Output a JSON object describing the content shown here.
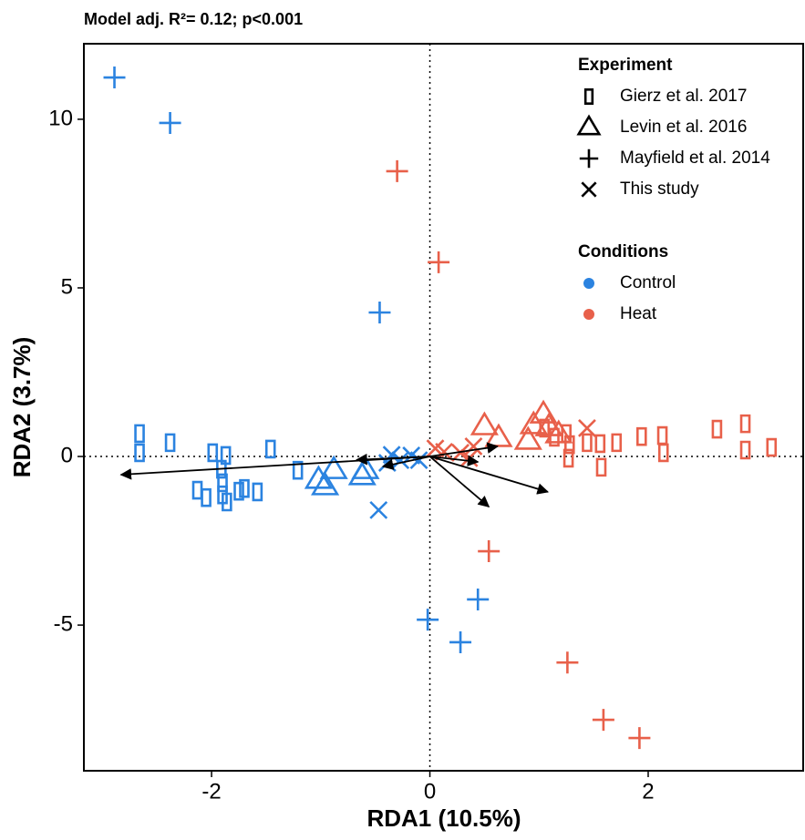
{
  "chart_data": {
    "type": "scatter",
    "title": "Model adj. R²= 0.12; p<0.001",
    "x_label": "RDA1 (10.5%)",
    "y_label": "RDA2 (3.7%)",
    "xlim": [
      -3.17,
      3.42
    ],
    "ylim": [
      -9.32,
      12.24
    ],
    "xticks": [
      -2,
      0,
      2
    ],
    "yticks": [
      -5,
      0,
      5,
      10
    ],
    "zero_lines": true,
    "legends": [
      {
        "title": "Experiment",
        "items": [
          {
            "label": "Gierz et al. 2017",
            "shape": "rect"
          },
          {
            "label": "Levin et al. 2016",
            "shape": "triangle"
          },
          {
            "label": "Mayfield et al. 2014",
            "shape": "plus"
          },
          {
            "label": "This study",
            "shape": "cross"
          }
        ]
      },
      {
        "title": "Conditions",
        "items": [
          {
            "label": "Control",
            "color": "#2b83e0"
          },
          {
            "label": "Heat",
            "color": "#e8604a"
          }
        ]
      }
    ],
    "series": [
      {
        "shape": "rect",
        "color": "#2b83e0",
        "x": [
          -2.66,
          -2.66,
          -2.38,
          -1.99,
          -2.13,
          -2.05,
          -1.91,
          -1.9,
          -1.9,
          -1.86,
          -1.87,
          -1.75,
          -1.7,
          -1.58,
          -1.46,
          -1.21
        ],
        "y": [
          0.68,
          0.11,
          0.41,
          0.11,
          -1.0,
          -1.22,
          -0.38,
          -0.78,
          -1.14,
          -1.35,
          0.03,
          -1.03,
          -0.95,
          -1.05,
          0.22,
          -0.41
        ]
      },
      {
        "shape": "triangle",
        "color": "#2b83e0",
        "x": [
          -1.02,
          -0.96,
          -0.88,
          -0.62,
          -0.59
        ],
        "y": [
          -0.7,
          -0.89,
          -0.41,
          -0.59,
          -0.41
        ]
      },
      {
        "shape": "cross",
        "color": "#2b83e0",
        "x": [
          -0.47,
          -0.35,
          -0.27,
          -0.17,
          -0.1,
          -0.39
        ],
        "y": [
          -1.59,
          0.05,
          -0.11,
          0.03,
          -0.11,
          -0.19
        ]
      },
      {
        "shape": "plus",
        "color": "#2b83e0",
        "x": [
          -2.89,
          -2.38,
          -0.46,
          -0.02,
          0.28,
          0.44
        ],
        "y": [
          11.24,
          9.89,
          4.27,
          -4.84,
          -5.51,
          -4.24
        ]
      },
      {
        "shape": "plus",
        "color": "#e8604a",
        "x": [
          -0.3,
          0.08,
          0.54,
          1.26,
          1.59,
          1.92
        ],
        "y": [
          8.46,
          5.76,
          -2.81,
          -6.11,
          -7.81,
          -8.35
        ]
      },
      {
        "shape": "triangle",
        "color": "#e8604a",
        "x": [
          0.5,
          0.63,
          0.9,
          1.04,
          1.09,
          0.95,
          1.18
        ],
        "y": [
          0.89,
          0.54,
          0.46,
          1.24,
          0.86,
          0.92,
          0.65
        ]
      },
      {
        "shape": "cross",
        "color": "#e8604a",
        "x": [
          0.05,
          0.13,
          0.28,
          0.36,
          1.44,
          0.4
        ],
        "y": [
          0.24,
          0.14,
          0.11,
          -0.05,
          0.84,
          0.3
        ]
      },
      {
        "shape": "rect",
        "color": "#e8604a",
        "x": [
          1.05,
          1.14,
          1.25,
          1.28,
          1.27,
          1.44,
          1.56,
          1.57,
          1.71,
          1.94,
          2.13,
          2.14,
          2.63,
          2.89,
          2.89,
          3.13
        ],
        "y": [
          0.84,
          0.57,
          0.68,
          0.35,
          -0.05,
          0.41,
          0.38,
          -0.32,
          0.41,
          0.59,
          0.62,
          0.11,
          0.81,
          0.97,
          0.19,
          0.27
        ]
      }
    ],
    "arrows": [
      {
        "x": -2.83,
        "y": -0.54
      },
      {
        "x": 0.62,
        "y": 0.3
      },
      {
        "x": 0.54,
        "y": -1.49
      },
      {
        "x": 1.08,
        "y": -1.05
      },
      {
        "x": -0.67,
        "y": -0.1
      },
      {
        "x": -0.43,
        "y": -0.3
      },
      {
        "x": 0.44,
        "y": -0.16
      }
    ]
  }
}
